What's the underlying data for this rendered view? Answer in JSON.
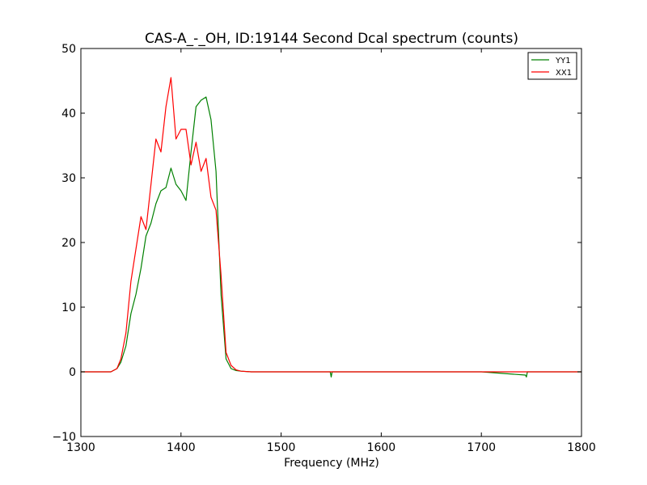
{
  "chart_data": {
    "type": "line",
    "title": "CAS-A_-_OH, ID:19144 Second Dcal spectrum (counts)",
    "xlabel": "Frequency (MHz)",
    "ylabel": "",
    "xlim": [
      1300,
      1800
    ],
    "ylim": [
      -10,
      50
    ],
    "xticks": [
      1300,
      1400,
      1500,
      1600,
      1700,
      1800
    ],
    "yticks": [
      -10,
      0,
      10,
      20,
      30,
      40,
      50
    ],
    "grid": false,
    "legend_position": "top-right",
    "series": [
      {
        "name": "YY1",
        "color": "#008000",
        "x": [
          1300,
          1330,
          1336,
          1340,
          1345,
          1350,
          1355,
          1360,
          1365,
          1370,
          1375,
          1380,
          1385,
          1390,
          1395,
          1400,
          1405,
          1410,
          1415,
          1420,
          1425,
          1430,
          1435,
          1440,
          1445,
          1450,
          1455,
          1460,
          1470,
          1500,
          1549,
          1550,
          1551,
          1600,
          1700,
          1744,
          1745,
          1746,
          1800
        ],
        "y": [
          0,
          0,
          0.5,
          1.5,
          4,
          9,
          12,
          16,
          21,
          23,
          26,
          28,
          28.5,
          31.5,
          29,
          28,
          26.5,
          34,
          41,
          42,
          42.5,
          39,
          31,
          12,
          2,
          0.5,
          0.2,
          0.1,
          0,
          0,
          0,
          -0.8,
          0,
          0,
          0,
          -0.5,
          -0.8,
          0,
          0
        ]
      },
      {
        "name": "XX1",
        "color": "#ff0000",
        "x": [
          1300,
          1330,
          1336,
          1340,
          1345,
          1350,
          1355,
          1360,
          1365,
          1370,
          1375,
          1380,
          1385,
          1390,
          1395,
          1400,
          1405,
          1410,
          1415,
          1420,
          1425,
          1430,
          1435,
          1440,
          1445,
          1450,
          1455,
          1460,
          1470,
          1800
        ],
        "y": [
          0,
          0,
          0.5,
          2,
          6,
          14,
          19,
          24,
          22,
          29,
          36,
          34,
          41,
          45.5,
          36,
          37.5,
          37.5,
          32,
          35.5,
          31,
          33,
          27,
          25,
          15,
          3,
          1,
          0.3,
          0.1,
          0,
          0
        ]
      }
    ]
  }
}
